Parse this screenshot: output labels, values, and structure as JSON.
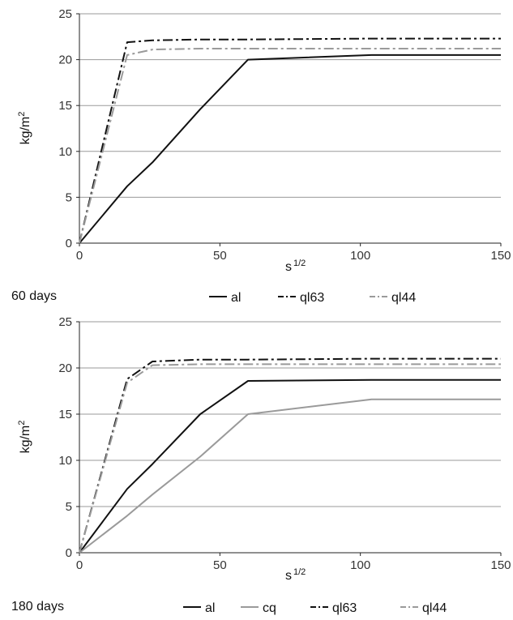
{
  "chart_data": [
    {
      "type": "line",
      "caption": "60 days",
      "ylabel": "kg/m",
      "ylabel_sup": "2",
      "xlabel": "s",
      "xlabel_sup": "1/2",
      "xlim": [
        0,
        150
      ],
      "ylim": [
        0,
        25
      ],
      "xticks": [
        0,
        50,
        100,
        150
      ],
      "yticks": [
        0,
        5,
        10,
        15,
        20,
        25
      ],
      "grid": "horizontal",
      "legend_position": "bottom",
      "series": [
        {
          "name": "al",
          "color": "#111111",
          "dash": "solid",
          "x": [
            0,
            17,
            26,
            43,
            60,
            104,
            150
          ],
          "y": [
            0,
            6.2,
            8.8,
            14.6,
            20.0,
            20.5,
            20.5
          ]
        },
        {
          "name": "ql63",
          "color": "#111111",
          "dash": "dashdot",
          "x": [
            0,
            17,
            26,
            43,
            60,
            104,
            150
          ],
          "y": [
            0,
            21.9,
            22.1,
            22.2,
            22.2,
            22.3,
            22.3
          ]
        },
        {
          "name": "ql44",
          "color": "#9a9a9a",
          "dash": "dashdot",
          "x": [
            0,
            17,
            26,
            43,
            60,
            104,
            150
          ],
          "y": [
            0,
            20.5,
            21.1,
            21.2,
            21.2,
            21.2,
            21.2
          ]
        }
      ]
    },
    {
      "type": "line",
      "caption": "180 days",
      "ylabel": "kg/m",
      "ylabel_sup": "2",
      "xlabel": "s",
      "xlabel_sup": "1/2",
      "xlim": [
        0,
        150
      ],
      "ylim": [
        0,
        25
      ],
      "xticks": [
        0,
        50,
        100,
        150
      ],
      "yticks": [
        0,
        5,
        10,
        15,
        20,
        25
      ],
      "grid": "horizontal",
      "legend_position": "bottom",
      "series": [
        {
          "name": "al",
          "color": "#111111",
          "dash": "solid",
          "x": [
            0,
            17,
            26,
            43,
            60,
            104,
            150
          ],
          "y": [
            0,
            6.9,
            9.6,
            15.0,
            18.6,
            18.7,
            18.7
          ]
        },
        {
          "name": "cq",
          "color": "#9a9a9a",
          "dash": "solid",
          "x": [
            0,
            17,
            26,
            43,
            60,
            104,
            150
          ],
          "y": [
            0,
            4.0,
            6.3,
            10.4,
            15.0,
            16.6,
            16.6
          ]
        },
        {
          "name": "ql63",
          "color": "#111111",
          "dash": "dashdot",
          "x": [
            0,
            17,
            26,
            43,
            60,
            104,
            150
          ],
          "y": [
            0,
            18.8,
            20.7,
            20.9,
            20.9,
            21.0,
            21.0
          ]
        },
        {
          "name": "ql44",
          "color": "#9a9a9a",
          "dash": "dashdot",
          "x": [
            0,
            17,
            26,
            43,
            60,
            104,
            150
          ],
          "y": [
            0,
            18.4,
            20.3,
            20.4,
            20.4,
            20.4,
            20.4
          ]
        }
      ]
    }
  ]
}
